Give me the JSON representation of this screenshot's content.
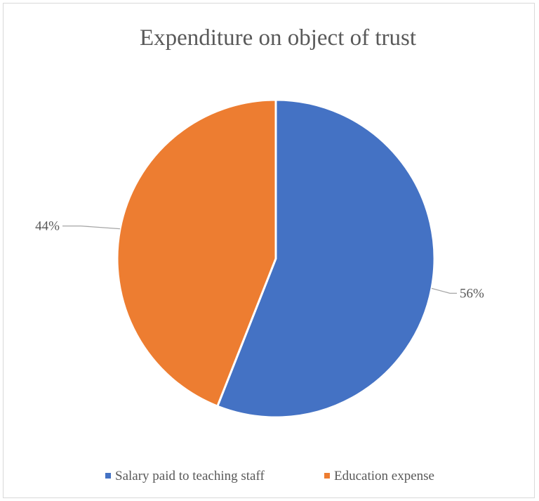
{
  "chart_data": {
    "type": "pie",
    "title": "Expenditure on object of trust",
    "legend_position": "bottom",
    "slices": [
      {
        "label": "Salary paid to teaching staff",
        "value": 56,
        "data_label": "56%",
        "color": "#4472C4"
      },
      {
        "label": "Education expense",
        "value": 44,
        "data_label": "44%",
        "color": "#ED7D31"
      }
    ]
  }
}
